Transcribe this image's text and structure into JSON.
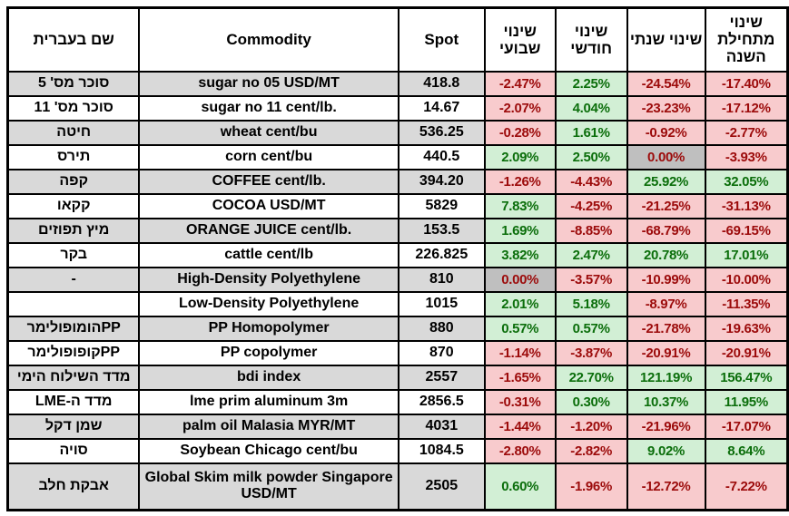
{
  "table": {
    "headers": {
      "hebrew": "שם בעברית",
      "commodity": "Commodity",
      "spot": "Spot",
      "weekly": "שינוי שבועי",
      "monthly": "שינוי חודשי",
      "yearly": "שינוי שנתי",
      "ytd": "שינוי מתחילת השנה"
    },
    "rows": [
      {
        "hebrew": "סוכר מס' 5",
        "commodity": "sugar no 05 USD/MT",
        "spot": "418.8",
        "weekly": {
          "v": "-2.47%",
          "s": "neg"
        },
        "monthly": {
          "v": "2.25%",
          "s": "pos"
        },
        "yearly": {
          "v": "-24.54%",
          "s": "neg"
        },
        "ytd": {
          "v": "-17.40%",
          "s": "neg"
        }
      },
      {
        "hebrew": "סוכר מס' 11",
        "commodity": "sugar no 11 cent/lb.",
        "spot": "14.67",
        "weekly": {
          "v": "-2.07%",
          "s": "neg"
        },
        "monthly": {
          "v": "4.04%",
          "s": "pos"
        },
        "yearly": {
          "v": "-23.23%",
          "s": "neg"
        },
        "ytd": {
          "v": "-17.12%",
          "s": "neg"
        }
      },
      {
        "hebrew": "חיטה",
        "commodity": "wheat cent/bu",
        "spot": "536.25",
        "weekly": {
          "v": "-0.28%",
          "s": "neg"
        },
        "monthly": {
          "v": "1.61%",
          "s": "pos"
        },
        "yearly": {
          "v": "-0.92%",
          "s": "neg"
        },
        "ytd": {
          "v": "-2.77%",
          "s": "neg"
        }
      },
      {
        "hebrew": "תירס",
        "commodity": "corn cent/bu",
        "spot": "440.5",
        "weekly": {
          "v": "2.09%",
          "s": "pos"
        },
        "monthly": {
          "v": "2.50%",
          "s": "pos"
        },
        "yearly": {
          "v": "0.00%",
          "s": "zero"
        },
        "ytd": {
          "v": "-3.93%",
          "s": "neg"
        }
      },
      {
        "hebrew": "קפה",
        "commodity": "COFFEE cent/lb.",
        "spot": "394.20",
        "weekly": {
          "v": "-1.26%",
          "s": "neg"
        },
        "monthly": {
          "v": "-4.43%",
          "s": "neg"
        },
        "yearly": {
          "v": "25.92%",
          "s": "pos"
        },
        "ytd": {
          "v": "32.05%",
          "s": "pos"
        }
      },
      {
        "hebrew": "קקאו",
        "commodity": "COCOA USD/MT",
        "spot": "5829",
        "weekly": {
          "v": "7.83%",
          "s": "pos"
        },
        "monthly": {
          "v": "-4.25%",
          "s": "neg"
        },
        "yearly": {
          "v": "-21.25%",
          "s": "neg"
        },
        "ytd": {
          "v": "-31.13%",
          "s": "neg"
        }
      },
      {
        "hebrew": "מיץ תפוזים",
        "commodity": "ORANGE JUICE cent/lb.",
        "spot": "153.5",
        "weekly": {
          "v": "1.69%",
          "s": "pos"
        },
        "monthly": {
          "v": "-8.85%",
          "s": "neg"
        },
        "yearly": {
          "v": "-68.79%",
          "s": "neg"
        },
        "ytd": {
          "v": "-69.15%",
          "s": "neg"
        }
      },
      {
        "hebrew": "בקר",
        "commodity": "cattle cent/lb",
        "spot": "226.825",
        "weekly": {
          "v": "3.82%",
          "s": "pos"
        },
        "monthly": {
          "v": "2.47%",
          "s": "pos"
        },
        "yearly": {
          "v": "20.78%",
          "s": "pos"
        },
        "ytd": {
          "v": "17.01%",
          "s": "pos"
        }
      },
      {
        "hebrew": "-",
        "commodity": "High-Density Polyethylene",
        "spot": "810",
        "weekly": {
          "v": "0.00%",
          "s": "zero"
        },
        "monthly": {
          "v": "-3.57%",
          "s": "neg"
        },
        "yearly": {
          "v": "-10.99%",
          "s": "neg"
        },
        "ytd": {
          "v": "-10.00%",
          "s": "neg"
        }
      },
      {
        "hebrew": "",
        "commodity": "Low-Density Polyethylene",
        "spot": "1015",
        "weekly": {
          "v": "2.01%",
          "s": "pos"
        },
        "monthly": {
          "v": "5.18%",
          "s": "pos"
        },
        "yearly": {
          "v": "-8.97%",
          "s": "neg"
        },
        "ytd": {
          "v": "-11.35%",
          "s": "neg"
        }
      },
      {
        "hebrew": "PPהומופולימר",
        "commodity": "PP Homopolymer",
        "spot": "880",
        "weekly": {
          "v": "0.57%",
          "s": "pos"
        },
        "monthly": {
          "v": "0.57%",
          "s": "pos"
        },
        "yearly": {
          "v": "-21.78%",
          "s": "neg"
        },
        "ytd": {
          "v": "-19.63%",
          "s": "neg"
        }
      },
      {
        "hebrew": "PPקופופולימר",
        "commodity": "PP copolymer",
        "spot": "870",
        "weekly": {
          "v": "-1.14%",
          "s": "neg"
        },
        "monthly": {
          "v": "-3.87%",
          "s": "neg"
        },
        "yearly": {
          "v": "-20.91%",
          "s": "neg"
        },
        "ytd": {
          "v": "-20.91%",
          "s": "neg"
        }
      },
      {
        "hebrew": "מדד השילוח הימי",
        "commodity": "bdi index",
        "spot": "2557",
        "weekly": {
          "v": "-1.65%",
          "s": "neg"
        },
        "monthly": {
          "v": "22.70%",
          "s": "pos"
        },
        "yearly": {
          "v": "121.19%",
          "s": "pos"
        },
        "ytd": {
          "v": "156.47%",
          "s": "pos"
        }
      },
      {
        "hebrew": "מדד ה-LME",
        "commodity": "lme prim aluminum 3m",
        "spot": "2856.5",
        "weekly": {
          "v": "-0.31%",
          "s": "neg"
        },
        "monthly": {
          "v": "0.30%",
          "s": "pos"
        },
        "yearly": {
          "v": "10.37%",
          "s": "pos"
        },
        "ytd": {
          "v": "11.95%",
          "s": "pos"
        }
      },
      {
        "hebrew": "שמן דקל",
        "commodity": "palm oil Malasia MYR/MT",
        "spot": "4031",
        "weekly": {
          "v": "-1.44%",
          "s": "neg"
        },
        "monthly": {
          "v": "-1.20%",
          "s": "neg"
        },
        "yearly": {
          "v": "-21.96%",
          "s": "neg"
        },
        "ytd": {
          "v": "-17.07%",
          "s": "neg"
        }
      },
      {
        "hebrew": "סויה",
        "commodity": "Soybean Chicago cent/bu",
        "spot": "1084.5",
        "weekly": {
          "v": "-2.80%",
          "s": "neg"
        },
        "monthly": {
          "v": "-2.82%",
          "s": "neg"
        },
        "yearly": {
          "v": "9.02%",
          "s": "pos"
        },
        "ytd": {
          "v": "8.64%",
          "s": "pos"
        }
      },
      {
        "hebrew": "אבקת חלב",
        "commodity": "Global Skim milk powder Singapore USD/MT",
        "spot": "2505",
        "weekly": {
          "v": "0.60%",
          "s": "pos"
        },
        "monthly": {
          "v": "-1.96%",
          "s": "neg"
        },
        "yearly": {
          "v": "-12.72%",
          "s": "neg"
        },
        "ytd": {
          "v": "-7.22%",
          "s": "neg"
        }
      }
    ]
  },
  "colors": {
    "positive_bg": "#D2EFD5",
    "positive_text": "#0B6E0B",
    "negative_bg": "#F8CBCD",
    "negative_text": "#9C0B0B",
    "zero_bg": "#BFBFBF",
    "zero_text": "#9C0B0B",
    "stripe_bg": "#D9D9D9",
    "border": "#000000"
  }
}
